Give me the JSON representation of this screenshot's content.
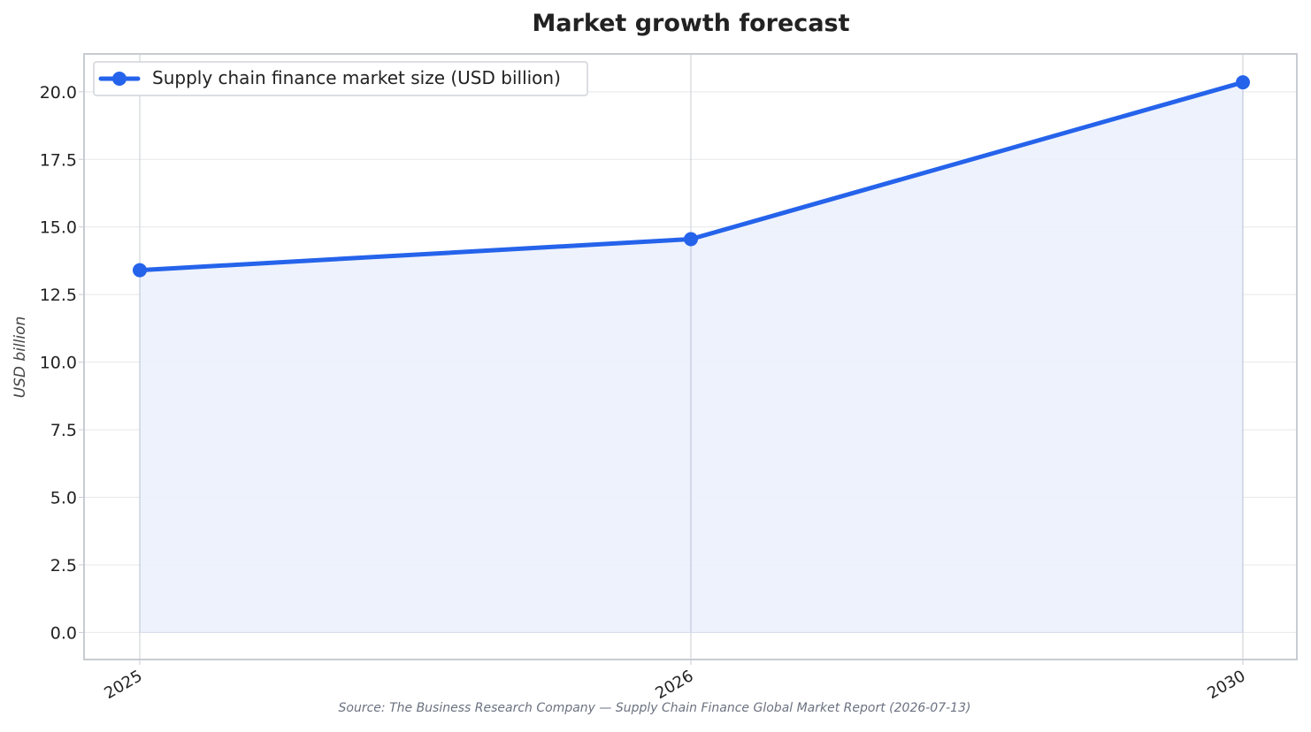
{
  "chart_data": {
    "type": "area",
    "title": "Market growth forecast",
    "xlabel": "",
    "ylabel": "USD billion",
    "categories": [
      "2025",
      "2026",
      "2030"
    ],
    "series": [
      {
        "name": "Supply chain finance market size (USD billion)",
        "values": [
          13.4,
          14.55,
          20.35
        ]
      }
    ],
    "ylim": [
      -1.0,
      21.4
    ],
    "yticks": [
      "0.0",
      "2.5",
      "5.0",
      "7.5",
      "10.0",
      "12.5",
      "15.0",
      "17.5",
      "20.0"
    ],
    "grid": true,
    "legend_position": "top-left",
    "source": "Source: The Business Research Company — Supply Chain Finance Global Market Report (2026-07-13)",
    "colors": {
      "line": "#2563eb",
      "fill": "#ecf1fc",
      "grid": "#e6e8ec",
      "axis": "#c8ccd2",
      "text": "#222222",
      "muted": "#6b7280"
    }
  }
}
